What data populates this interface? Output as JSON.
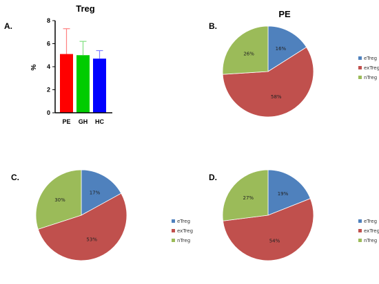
{
  "chart_data": [
    {
      "panel": "A.",
      "type": "bar",
      "title": "Treg",
      "ylabel": "%",
      "categories": [
        "PE",
        "GH",
        "HC"
      ],
      "values": [
        5.1,
        5.0,
        4.7
      ],
      "errors": [
        2.2,
        1.2,
        0.7
      ],
      "colors": [
        "#ff0000",
        "#00cc00",
        "#0000ff"
      ],
      "error_colors": [
        "#ff8080",
        "#80e080",
        "#8080ff"
      ],
      "ylim": [
        0,
        8
      ],
      "yticks": [
        "0",
        "2",
        "4",
        "6",
        "8"
      ]
    },
    {
      "panel": "B.",
      "type": "pie",
      "title": "PE",
      "labels": [
        "eTreg",
        "exTreg",
        "nTreg"
      ],
      "values": [
        16,
        58,
        26
      ],
      "value_labels": [
        "16%",
        "58%",
        "26%"
      ],
      "colors": [
        "#4f81bd",
        "#c0504d",
        "#9bbb59"
      ]
    },
    {
      "panel": "C.",
      "type": "pie",
      "title": "GH",
      "labels": [
        "eTreg",
        "exTreg",
        "nTreg"
      ],
      "values": [
        17,
        53,
        30
      ],
      "value_labels": [
        "17%",
        "53%",
        "30%"
      ],
      "colors": [
        "#4f81bd",
        "#c0504d",
        "#9bbb59"
      ]
    },
    {
      "panel": "D.",
      "type": "pie",
      "title": "HC",
      "labels": [
        "eTreg",
        "exTreg",
        "nTreg"
      ],
      "values": [
        19,
        54,
        27
      ],
      "value_labels": [
        "19%",
        "54%",
        "27%"
      ],
      "colors": [
        "#4f81bd",
        "#c0504d",
        "#9bbb59"
      ]
    }
  ]
}
